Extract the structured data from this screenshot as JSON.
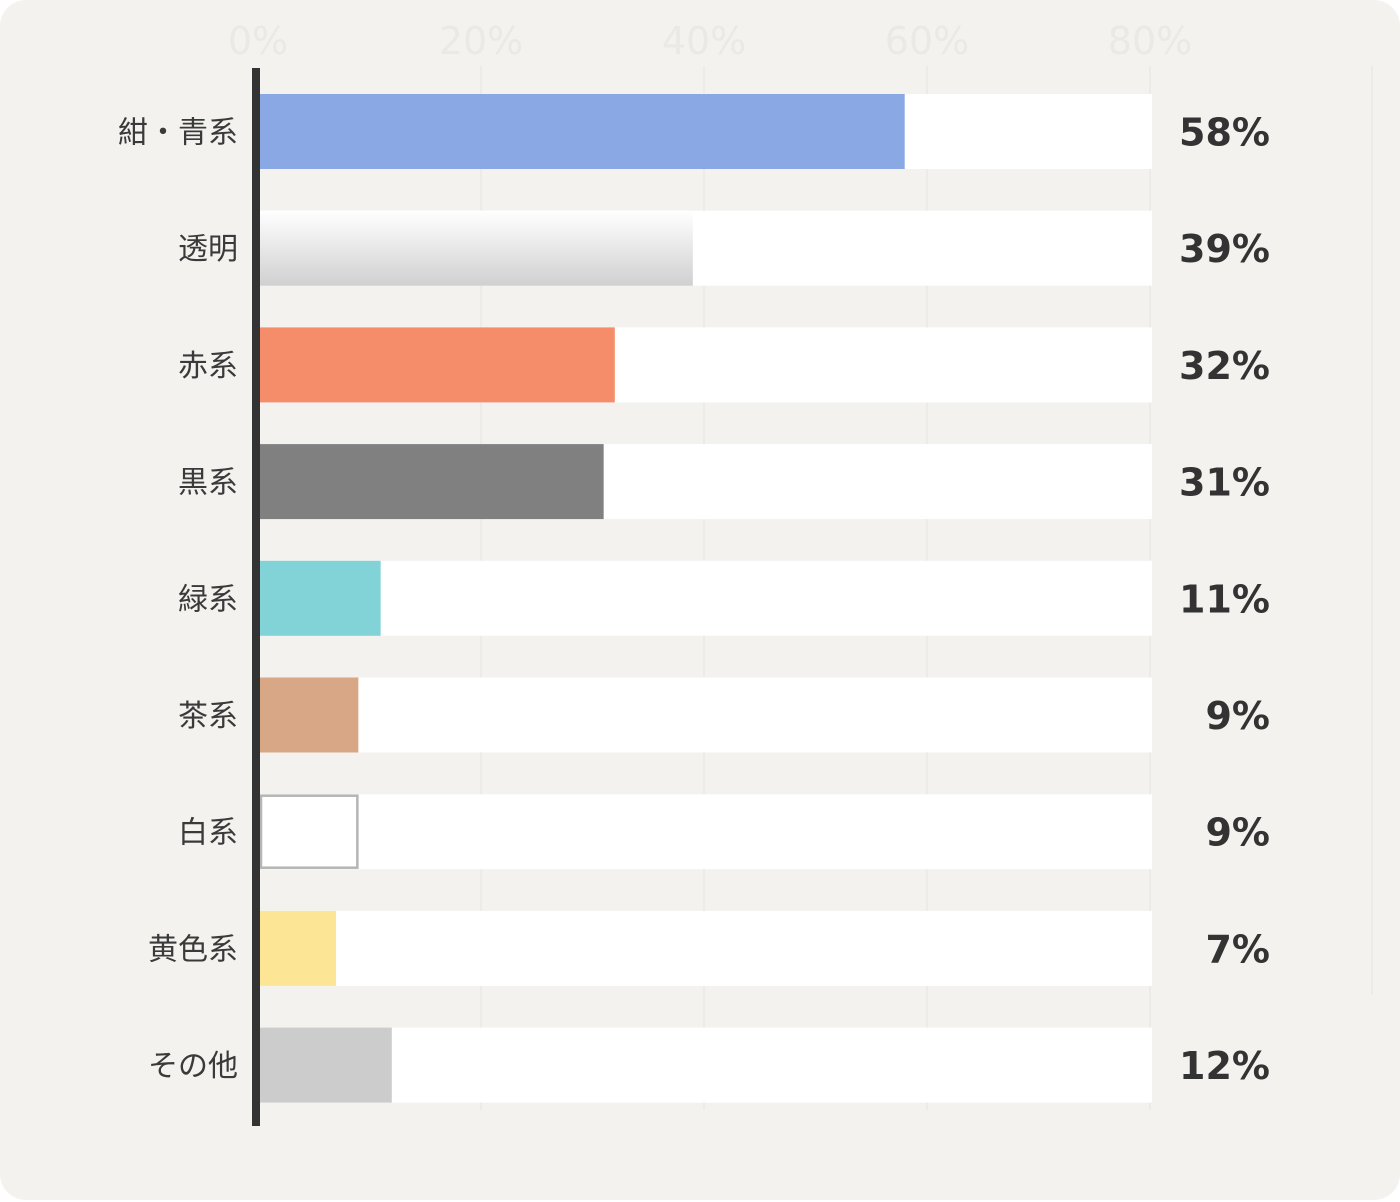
{
  "chart_data": {
    "type": "bar",
    "orientation": "horizontal",
    "categories": [
      "紺・青系",
      "透明",
      "赤系",
      "黒系",
      "緑系",
      "茶系",
      "白系",
      "黄色系",
      "その他"
    ],
    "values": [
      58,
      39,
      32,
      31,
      11,
      9,
      9,
      7,
      12
    ],
    "value_labels": [
      "58%",
      "39%",
      "32%",
      "31%",
      "11%",
      "9%",
      "9%",
      "7%",
      "12%"
    ],
    "xlim": [
      0,
      80
    ],
    "x_ticks": [
      0,
      20,
      40,
      60,
      80
    ],
    "x_tick_labels": [
      "0%",
      "20%",
      "40%",
      "60%",
      "80%"
    ],
    "grid": true,
    "colors": [
      "#8aa8e3",
      "gradient-clear",
      "#f58d6a",
      "#808080",
      "#82d3d7",
      "#d8a786",
      "#ffffff",
      "#fce594",
      "#cccccc"
    ],
    "track_color": "#ffffff",
    "background": "#f3f2ef",
    "axis_color": "#333333"
  }
}
